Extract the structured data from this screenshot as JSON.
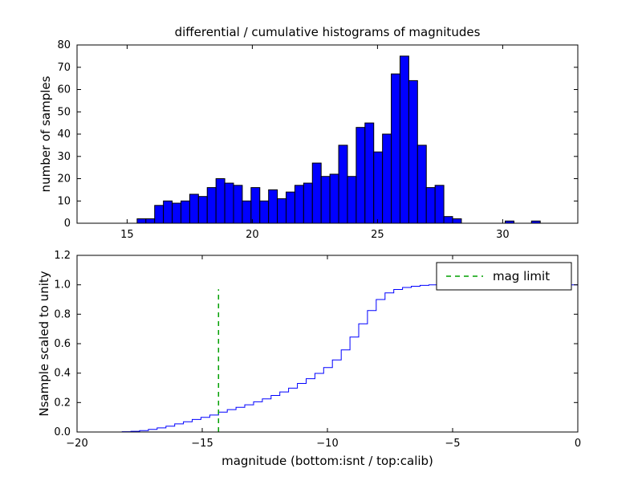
{
  "figure": {
    "background": "#ffffff"
  },
  "chart_data": [
    {
      "type": "bar",
      "subtype": "histogram",
      "title": "differential / cumulative histograms of magnitudes",
      "xlabel": "",
      "ylabel": "number of samples",
      "xlim": [
        13,
        33
      ],
      "ylim": [
        0,
        80
      ],
      "xticks": [
        15,
        20,
        25,
        30
      ],
      "yticks": [
        0,
        10,
        20,
        30,
        40,
        50,
        60,
        70,
        80
      ],
      "grid": false,
      "bar_color": "#0000ff",
      "bar_edge_color": "#000000",
      "bins": {
        "start": 15.4,
        "width": 0.35
      },
      "counts": [
        2,
        2,
        8,
        10,
        9,
        10,
        13,
        12,
        16,
        20,
        18,
        17,
        10,
        16,
        10,
        15,
        11,
        14,
        17,
        18,
        27,
        21,
        22,
        35,
        21,
        43,
        45,
        32,
        40,
        67,
        75,
        64,
        35,
        16,
        17,
        3,
        2,
        0,
        0,
        0,
        0,
        0,
        1,
        0,
        0,
        1
      ]
    },
    {
      "type": "line",
      "subtype": "cumulative-step",
      "title": "",
      "xlabel": "magnitude (bottom:isnt / top:calib)",
      "ylabel": "Nsample scaled to unity",
      "xlim": [
        -20,
        0
      ],
      "ylim": [
        0,
        1.2
      ],
      "xticks": [
        -20,
        -15,
        -10,
        -5,
        0
      ],
      "yticks": [
        0.0,
        0.2,
        0.4,
        0.6,
        0.8,
        1.0,
        1.2
      ],
      "grid": false,
      "line_color": "#0000ff",
      "step_start": -18.2,
      "points": [
        [
          -17.85,
          0.002
        ],
        [
          -17.5,
          0.005
        ],
        [
          -17.15,
          0.01
        ],
        [
          -16.8,
          0.018
        ],
        [
          -16.45,
          0.028
        ],
        [
          -16.1,
          0.04
        ],
        [
          -15.75,
          0.055
        ],
        [
          -15.4,
          0.07
        ],
        [
          -15.05,
          0.085
        ],
        [
          -14.7,
          0.1
        ],
        [
          -14.35,
          0.115
        ],
        [
          -14.0,
          0.135
        ],
        [
          -13.65,
          0.152
        ],
        [
          -13.3,
          0.168
        ],
        [
          -12.95,
          0.185
        ],
        [
          -12.6,
          0.205
        ],
        [
          -12.25,
          0.225
        ],
        [
          -11.9,
          0.248
        ],
        [
          -11.55,
          0.272
        ],
        [
          -11.2,
          0.298
        ],
        [
          -10.85,
          0.33
        ],
        [
          -10.5,
          0.362
        ],
        [
          -10.15,
          0.398
        ],
        [
          -9.8,
          0.438
        ],
        [
          -9.45,
          0.49
        ],
        [
          -9.1,
          0.558
        ],
        [
          -8.75,
          0.645
        ],
        [
          -8.4,
          0.735
        ],
        [
          -8.05,
          0.825
        ],
        [
          -7.7,
          0.9
        ],
        [
          -7.35,
          0.945
        ],
        [
          -7.0,
          0.968
        ],
        [
          -6.65,
          0.982
        ],
        [
          -6.3,
          0.99
        ],
        [
          -5.95,
          0.996
        ],
        [
          -5.6,
          1.0
        ],
        [
          0,
          1.0
        ]
      ],
      "mag_limit": {
        "x": -14.35,
        "y_bottom": 0.0,
        "y_top": 0.97,
        "color": "#00a000",
        "line_style": "dashed",
        "label": "mag limit"
      },
      "legend": {
        "position": "upper right",
        "entries": [
          "mag limit"
        ]
      }
    }
  ]
}
